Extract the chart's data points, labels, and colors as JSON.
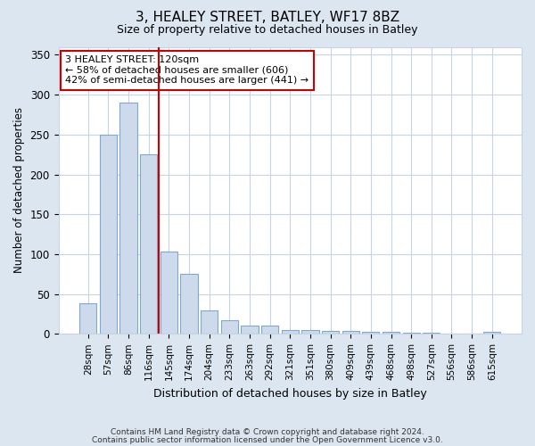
{
  "title1": "3, HEALEY STREET, BATLEY, WF17 8BZ",
  "title2": "Size of property relative to detached houses in Batley",
  "xlabel": "Distribution of detached houses by size in Batley",
  "ylabel": "Number of detached properties",
  "categories": [
    "28sqm",
    "57sqm",
    "86sqm",
    "116sqm",
    "145sqm",
    "174sqm",
    "204sqm",
    "233sqm",
    "263sqm",
    "292sqm",
    "321sqm",
    "351sqm",
    "380sqm",
    "409sqm",
    "439sqm",
    "468sqm",
    "498sqm",
    "527sqm",
    "556sqm",
    "586sqm",
    "615sqm"
  ],
  "values": [
    38,
    250,
    290,
    225,
    103,
    75,
    29,
    17,
    10,
    10,
    5,
    5,
    4,
    4,
    3,
    3,
    2,
    2,
    0,
    0,
    3
  ],
  "bar_color": "#cddaeb",
  "bar_edge_color": "#7da8d4",
  "vline_x": 3.5,
  "vline_color": "#cc0000",
  "annotation_text": "3 HEALEY STREET: 120sqm\n← 58% of detached houses are smaller (606)\n42% of semi-detached houses are larger (441) →",
  "annotation_box_color": "#ffffff",
  "annotation_box_edge": "#cc0000",
  "grid_color": "#c8d4e4",
  "bg_color": "#dce6f0",
  "plot_bg_color": "#ffffff",
  "footer1": "Contains HM Land Registry data © Crown copyright and database right 2024.",
  "footer2": "Contains public sector information licensed under the Open Government Licence v3.0.",
  "ylim": [
    0,
    360
  ],
  "yticks": [
    0,
    50,
    100,
    150,
    200,
    250,
    300,
    350
  ]
}
